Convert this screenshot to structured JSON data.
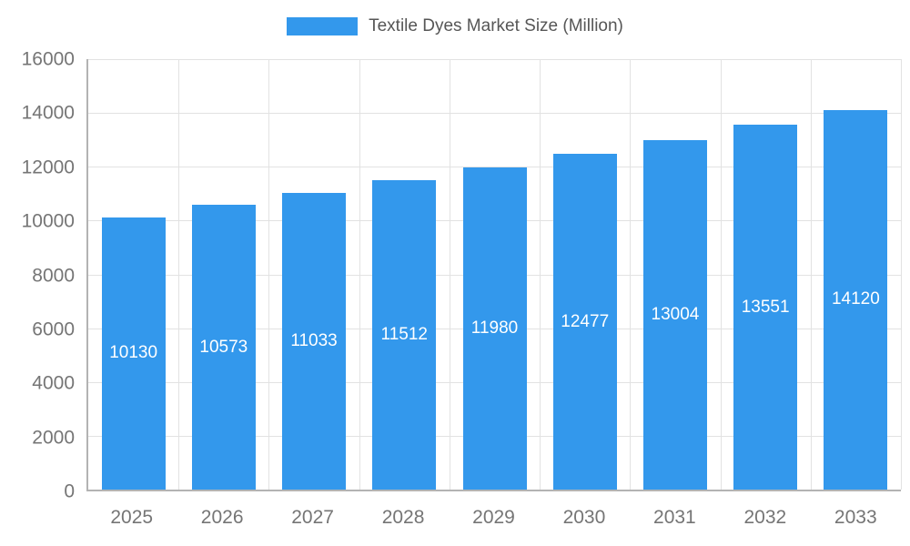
{
  "legend": {
    "label": "Textile Dyes Market Size (Million)",
    "color": "#3398ec"
  },
  "chart_data": {
    "type": "bar",
    "title": "Textile Dyes Market Size (Million)",
    "categories": [
      "2025",
      "2026",
      "2027",
      "2028",
      "2029",
      "2030",
      "2031",
      "2032",
      "2033"
    ],
    "values": [
      10130,
      10573,
      11033,
      11512,
      11980,
      12477,
      13004,
      13551,
      14120
    ],
    "xlabel": "",
    "ylabel": "",
    "ylim": [
      0,
      16000
    ],
    "ytick_step": 2000,
    "ytick_labels": [
      "0",
      "2000",
      "4000",
      "6000",
      "8000",
      "10000",
      "12000",
      "14000",
      "16000"
    ],
    "bar_color": "#3398ec",
    "value_label_color": "#ffffff",
    "axis_text_color": "#757575",
    "grid": true,
    "legend_position": "top"
  }
}
